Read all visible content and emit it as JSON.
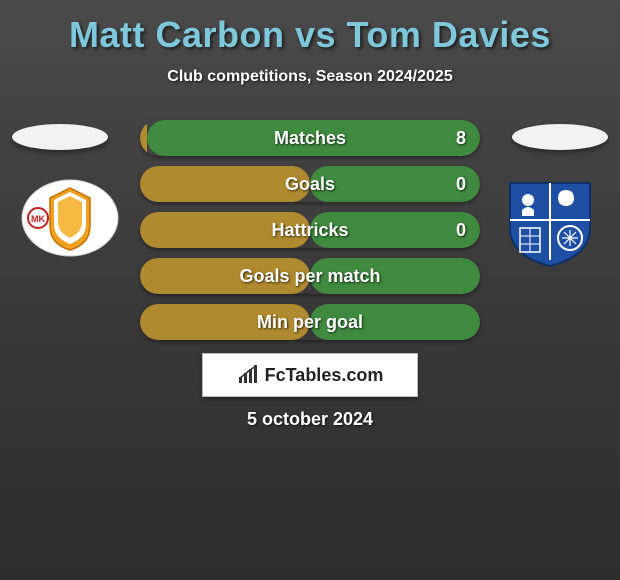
{
  "header": {
    "title": "Matt Carbon vs Tom Davies",
    "title_color": "#7fc8db",
    "title_fontsize": 36,
    "subtitle": "Club competitions, Season 2024/2025",
    "subtitle_color": "#ffffff",
    "subtitle_fontsize": 16
  },
  "background": {
    "gradient_top": "#4a4a4a",
    "gradient_mid": "#3a3a3a",
    "gradient_bottom": "#2d2d2d"
  },
  "side_markers": {
    "ellipse_fill": "#f2f2f2",
    "ellipse_w": 96,
    "ellipse_h": 26
  },
  "clubs": {
    "left": {
      "name": "MK Dons",
      "badge_bg": "#ffffff",
      "badge_accent": "#f0a020",
      "badge_text": "#c02020"
    },
    "right": {
      "name": "Tranmere Rovers",
      "badge_bg": "#1e4fa3",
      "badge_fg": "#ffffff"
    }
  },
  "stats": {
    "type": "h2h-bars",
    "pill_height": 36,
    "pill_radius": 18,
    "gap": 10,
    "left_color": "#b08a2e",
    "right_color": "#3f8a3f",
    "label_color": "#ffffff",
    "label_fontsize": 18,
    "value_fontsize": 18,
    "rows": [
      {
        "label": "Matches",
        "left": "",
        "right": "8",
        "left_share": 0.02,
        "right_share": 0.98
      },
      {
        "label": "Goals",
        "left": "",
        "right": "0",
        "left_share": 0.5,
        "right_share": 0.5
      },
      {
        "label": "Hattricks",
        "left": "",
        "right": "0",
        "left_share": 0.5,
        "right_share": 0.5
      },
      {
        "label": "Goals per match",
        "left": "",
        "right": "",
        "left_share": 0.5,
        "right_share": 0.5
      },
      {
        "label": "Min per goal",
        "left": "",
        "right": "",
        "left_share": 0.5,
        "right_share": 0.5
      }
    ]
  },
  "brand": {
    "text": "FcTables.com",
    "text_color": "#222222",
    "bg": "#ffffff",
    "border": "#bbbbbb",
    "icon_color": "#333333"
  },
  "footer": {
    "date": "5 october 2024",
    "date_color": "#ffffff",
    "date_fontsize": 18
  }
}
